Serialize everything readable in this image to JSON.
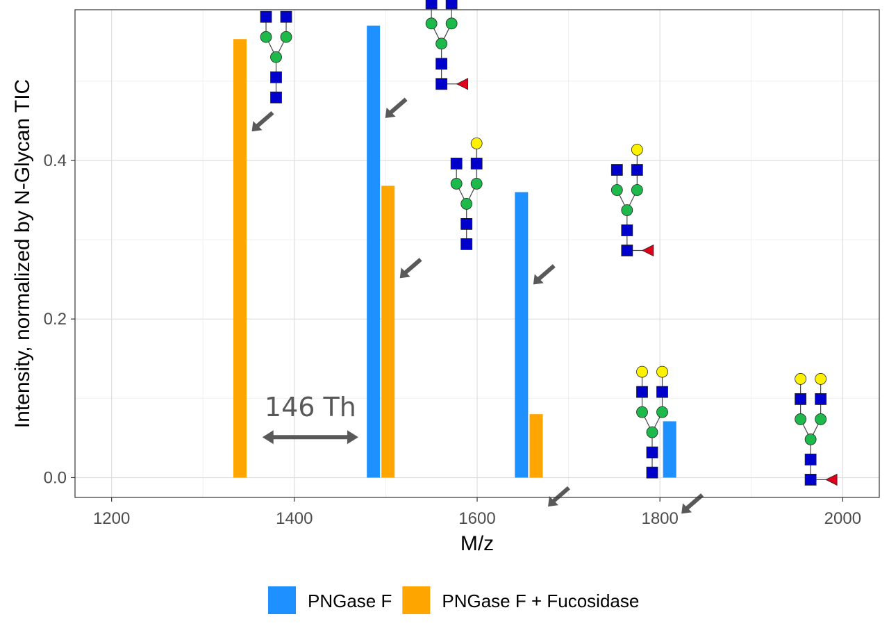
{
  "chart_data": {
    "type": "bar",
    "xlabel": "M/z",
    "ylabel": "Intensity, normalized by N-Glycan TIC",
    "xlim": [
      1160,
      2040
    ],
    "ylim": [
      -0.025,
      0.59
    ],
    "x_ticks": [
      1200,
      1400,
      1600,
      1800,
      2000
    ],
    "y_ticks": [
      0.0,
      0.2,
      0.4
    ],
    "y_tick_labels": [
      "0.0",
      "0.2",
      "0.4"
    ],
    "grid": true,
    "legend_position": "bottom",
    "series": [
      {
        "name": "PNGase F",
        "color": "#1E90FF",
        "points": [
          {
            "x": 1486.5,
            "y": 0.57
          },
          {
            "x": 1648.5,
            "y": 0.36
          },
          {
            "x": 1810.6,
            "y": 0.071
          }
        ]
      },
      {
        "name": "PNGase F + Fucosidase",
        "color": "#FFA500",
        "points": [
          {
            "x": 1340.5,
            "y": 0.553
          },
          {
            "x": 1502.5,
            "y": 0.368
          },
          {
            "x": 1664.6,
            "y": 0.08
          }
        ]
      }
    ],
    "annotations": [
      {
        "text": "146 Th",
        "x_from": 1365,
        "x_to": 1470,
        "y": 0.051
      }
    ],
    "glycans": [
      {
        "points_to_x": 1340.5,
        "structure": "HexNAc2Hex3HexNAc2"
      },
      {
        "points_to_x": 1486.5,
        "structure": "HexNAc2Hex3HexNAc2+Fuc"
      },
      {
        "points_to_x": 1502.5,
        "structure": "Gal1HexNAc2Hex3HexNAc2"
      },
      {
        "points_to_x": 1648.5,
        "structure": "Gal1HexNAc2Hex3HexNAc2+Fuc"
      },
      {
        "points_to_x": 1664.6,
        "structure": "Gal2HexNAc2Hex3HexNAc2"
      },
      {
        "points_to_x": 1810.6,
        "structure": "Gal2HexNAc2Hex3HexNAc2+Fuc"
      }
    ]
  },
  "colors": {
    "hexnac": "#0000CC",
    "mannose": "#1DB94A",
    "galactose": "#FFF200",
    "fucose": "#E0001A",
    "arrow": "#595959"
  }
}
